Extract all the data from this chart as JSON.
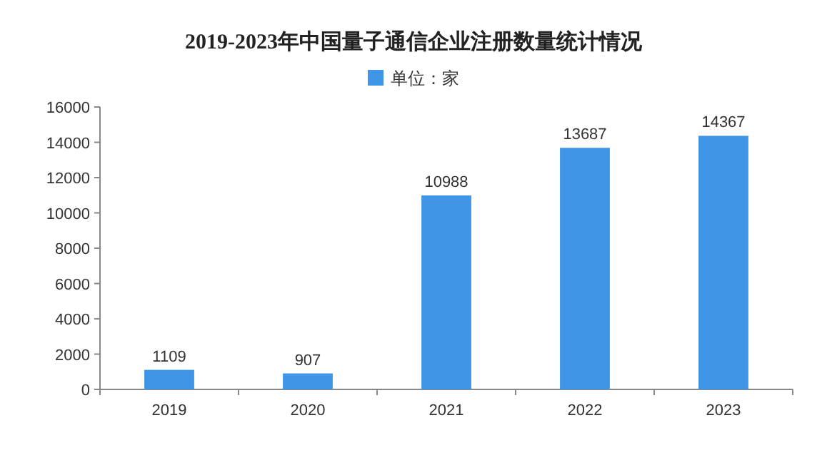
{
  "chart_data": {
    "type": "bar",
    "title": "2019-2023年中国量子通信企业注册数量统计情况",
    "categories": [
      "2019",
      "2020",
      "2021",
      "2022",
      "2023"
    ],
    "series": [
      {
        "name": "单位：家",
        "color": "#3f96e6",
        "values": [
          1109,
          907,
          10988,
          13687,
          14367
        ]
      }
    ],
    "ylim": [
      0,
      16000
    ],
    "yticks": [
      0,
      2000,
      4000,
      6000,
      8000,
      10000,
      12000,
      14000,
      16000
    ],
    "data_labels": true,
    "legend": "top"
  }
}
